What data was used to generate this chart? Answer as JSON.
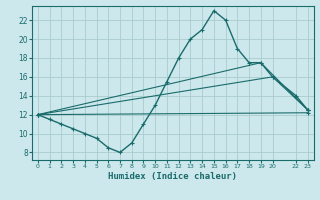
{
  "xlabel": "Humidex (Indice chaleur)",
  "bg_color": "#cce8ec",
  "grid_color": "#aacccc",
  "line_color": "#1a6b6b",
  "xlim": [
    -0.5,
    23.5
  ],
  "ylim": [
    7.2,
    23.5
  ],
  "yticks": [
    8,
    10,
    12,
    14,
    16,
    18,
    20,
    22
  ],
  "xtick_positions": [
    0,
    1,
    2,
    3,
    4,
    5,
    6,
    7,
    8,
    9,
    10,
    11,
    12,
    13,
    14,
    15,
    16,
    17,
    18,
    19,
    20,
    22,
    23
  ],
  "xtick_labels": [
    "0",
    "1",
    "2",
    "3",
    "4",
    "5",
    "6",
    "7",
    "8",
    "9",
    "10",
    "11",
    "12",
    "13",
    "14",
    "15",
    "16",
    "17",
    "18",
    "19",
    "20",
    "22",
    "23"
  ],
  "series": [
    {
      "x": [
        0,
        1,
        2,
        3,
        4,
        5,
        6,
        7,
        8,
        9,
        10,
        11,
        12,
        13,
        14,
        15,
        16,
        17,
        18,
        19,
        20,
        22,
        23
      ],
      "y": [
        12,
        11.5,
        11,
        10.5,
        10,
        9.5,
        8.5,
        8,
        9,
        11,
        13,
        15.5,
        18,
        20,
        21,
        23,
        22,
        19,
        17.5,
        17.5,
        16,
        14,
        12.5
      ],
      "lw": 1.0
    },
    {
      "x": [
        0,
        23
      ],
      "y": [
        12,
        12.2
      ],
      "lw": 0.8
    },
    {
      "x": [
        0,
        19,
        23
      ],
      "y": [
        12,
        17.5,
        12.5
      ],
      "lw": 0.8
    },
    {
      "x": [
        0,
        20,
        23
      ],
      "y": [
        12,
        16,
        12.5
      ],
      "lw": 0.8
    }
  ]
}
